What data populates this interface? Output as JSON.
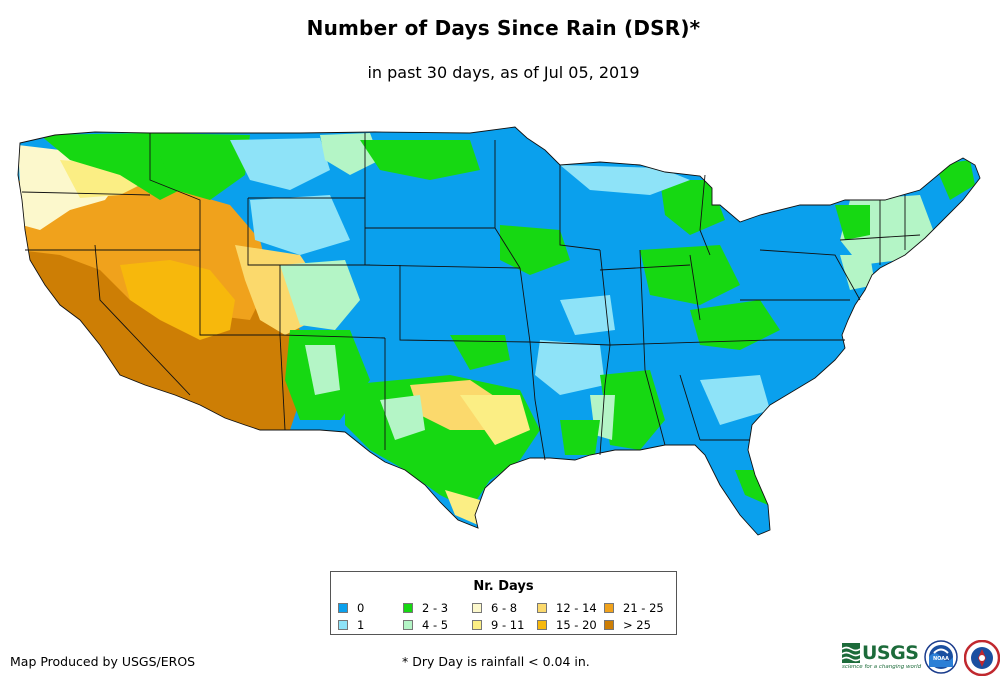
{
  "title": "Number of Days Since Rain (DSR)*",
  "subtitle": "in past 30 days, as of Jul 05, 2019",
  "legend": {
    "title": "Nr. Days",
    "items": [
      {
        "label": "0",
        "color": "#0aa0ed"
      },
      {
        "label": "1",
        "color": "#8ee3f8"
      },
      {
        "label": "2 - 3",
        "color": "#16d812"
      },
      {
        "label": "4 - 5",
        "color": "#b4f5c6"
      },
      {
        "label": "6 - 8",
        "color": "#fcf8cc"
      },
      {
        "label": "9 - 11",
        "color": "#fbee84"
      },
      {
        "label": "12 - 14",
        "color": "#fbd96c"
      },
      {
        "label": "15 - 20",
        "color": "#f7b80c"
      },
      {
        "label": "21 - 25",
        "color": "#f0a21c"
      },
      {
        "label": "> 25",
        "color": "#cd7e05"
      }
    ]
  },
  "credit": "Map Produced by USGS/EROS",
  "footnote": "* Dry Day is rainfall < 0.04 in.",
  "logos": {
    "usgs_text": "USGS",
    "usgs_tagline": "science for a changing world",
    "noaa_text": "NOAA"
  }
}
